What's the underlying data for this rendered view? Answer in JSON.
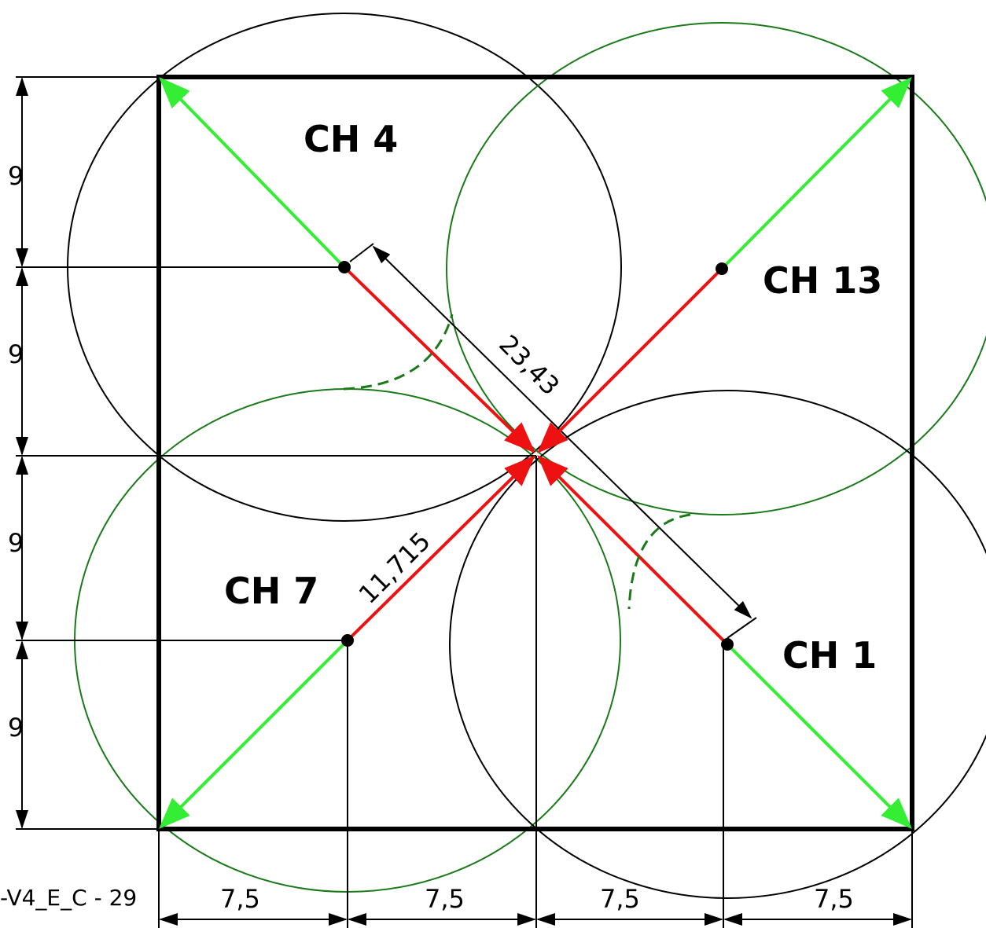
{
  "channels": [
    {
      "label": "CH 4"
    },
    {
      "label": "CH 13"
    },
    {
      "label": "CH 7"
    },
    {
      "label": "CH 1"
    }
  ],
  "dimensions": {
    "vertical": [
      "9",
      "9",
      "9",
      "9"
    ],
    "horizontal": [
      "7,5",
      "7,5",
      "7,5",
      "7,5"
    ],
    "diagonal": "23,43",
    "radius": "11,715"
  },
  "footer": "-V4_E_C - 29"
}
